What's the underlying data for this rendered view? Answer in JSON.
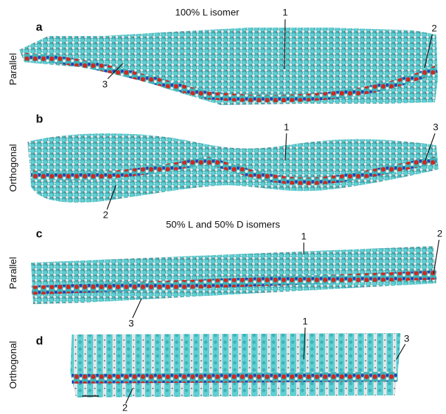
{
  "headers": {
    "top": "100% L isomer",
    "bottom": "50% L and 50% D isomers"
  },
  "panels": [
    {
      "label": "a",
      "orientation": "Parallel",
      "callouts": [
        "1",
        "2",
        "3"
      ]
    },
    {
      "label": "b",
      "orientation": "Orthogonal",
      "callouts": [
        "1",
        "3",
        "2"
      ]
    },
    {
      "label": "c",
      "orientation": "Parallel",
      "callouts": [
        "1",
        "2",
        "3"
      ]
    },
    {
      "label": "d",
      "orientation": "Orthogonal",
      "callouts": [
        "1",
        "3",
        "2"
      ]
    }
  ]
}
